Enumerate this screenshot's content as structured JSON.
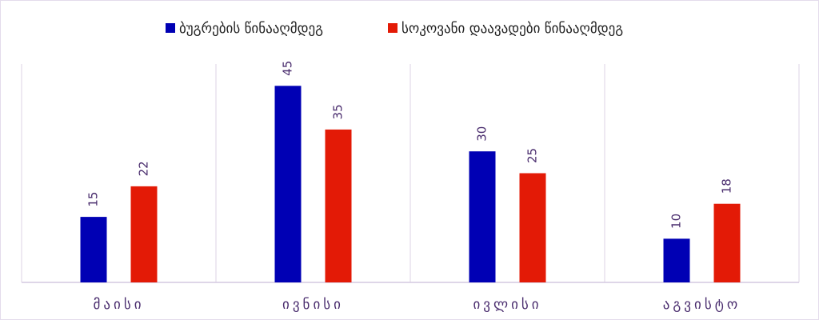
{
  "chart_data": {
    "type": "bar",
    "categories": [
      "მაისი",
      "ივნისი",
      "ივლისი",
      "აგვისტო"
    ],
    "series": [
      {
        "name": "ბუგრების წინააღმდეგ",
        "color": "#0000b4",
        "values": [
          15,
          45,
          30,
          10
        ]
      },
      {
        "name": "სოკოვანი დაავადები წინააღმდეგ",
        "color": "#e31a06",
        "values": [
          22,
          35,
          25,
          18
        ]
      }
    ],
    "ylim": [
      0,
      50
    ],
    "legend": "top"
  }
}
